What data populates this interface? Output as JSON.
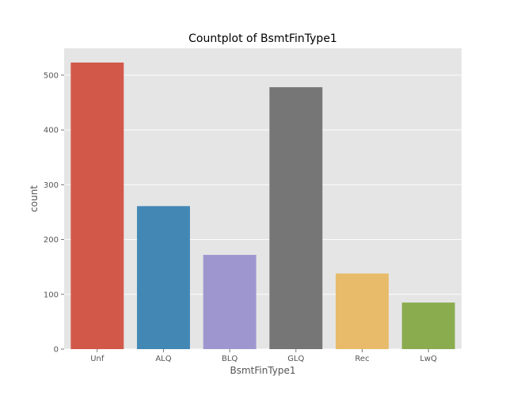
{
  "chart_data": {
    "type": "bar",
    "title": "Countplot of BsmtFinType1",
    "xlabel": "BsmtFinType1",
    "ylabel": "count",
    "categories": [
      "Unf",
      "ALQ",
      "BLQ",
      "GLQ",
      "Rec",
      "LwQ"
    ],
    "values": [
      523,
      261,
      172,
      478,
      138,
      85
    ],
    "colors": [
      "#d2594a",
      "#4387b5",
      "#9e97cf",
      "#767676",
      "#e7bb69",
      "#8aac4f"
    ],
    "yticks": [
      0,
      100,
      200,
      300,
      400,
      500
    ],
    "ylim": [
      0,
      549
    ],
    "grid": true,
    "background": "#e5e5e5"
  }
}
